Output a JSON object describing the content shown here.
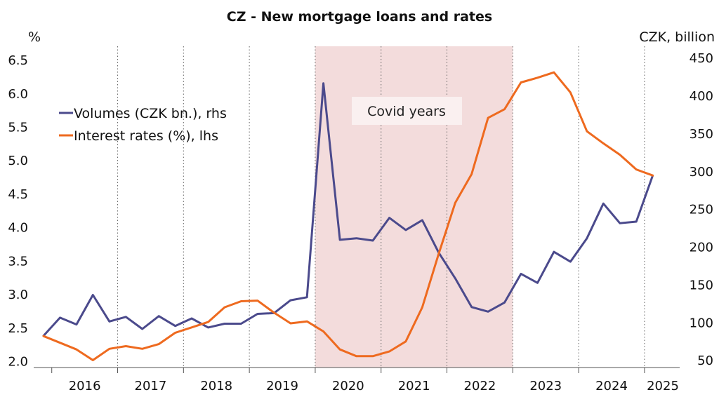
{
  "chart_data": {
    "type": "line",
    "title": "CZ - New mortgage loans and rates",
    "left_axis_unit": "%",
    "right_axis_unit": "CZK, billion",
    "left_ylim": [
      1.9,
      6.7
    ],
    "right_ylim": [
      40,
      465
    ],
    "left_ticks": [
      "2.0",
      "2.5",
      "3.0",
      "3.5",
      "4.0",
      "4.5",
      "5.0",
      "5.5",
      "6.0",
      "6.5"
    ],
    "right_ticks": [
      "50",
      "100",
      "150",
      "200",
      "250",
      "300",
      "350",
      "400",
      "450"
    ],
    "x_labels": [
      "2016",
      "2017",
      "2018",
      "2019",
      "2020",
      "2021",
      "2022",
      "2023",
      "2024",
      "2025"
    ],
    "x_quarters": [
      "2015 Q4",
      "2016 Q1",
      "2016 Q2",
      "2016 Q3",
      "2016 Q4",
      "2017 Q1",
      "2017 Q2",
      "2017 Q3",
      "2017 Q4",
      "2018 Q1",
      "2018 Q2",
      "2018 Q3",
      "2018 Q4",
      "2019 Q1",
      "2019 Q2",
      "2019 Q3",
      "2019 Q4",
      "2020 Q1",
      "2020 Q2",
      "2020 Q3",
      "2020 Q4",
      "2021 Q1",
      "2021 Q2",
      "2021 Q3",
      "2021 Q4",
      "2022 Q1",
      "2022 Q2",
      "2022 Q3",
      "2022 Q4",
      "2023 Q1",
      "2023 Q2",
      "2023 Q3",
      "2023 Q4",
      "2024 Q1",
      "2024 Q2",
      "2024 Q3",
      "2024 Q4",
      "2025 Q1"
    ],
    "series": [
      {
        "name": "Volumes (CZK bn.), rhs",
        "axis": "right",
        "color": "#4b4a8c",
        "values": [
          82,
          106,
          97,
          136,
          101,
          107,
          91,
          108,
          95,
          105,
          93,
          98,
          98,
          111,
          112,
          129,
          133,
          416,
          209,
          211,
          208,
          238,
          222,
          235,
          192,
          158,
          120,
          114,
          126,
          164,
          152,
          193,
          180,
          211,
          257,
          231,
          233,
          294
        ]
      },
      {
        "name": "Interest rates (%), lhs",
        "axis": "left",
        "color": "#ee6a1f",
        "values": [
          2.37,
          2.27,
          2.17,
          2.01,
          2.18,
          2.22,
          2.18,
          2.25,
          2.42,
          2.5,
          2.58,
          2.8,
          2.89,
          2.9,
          2.72,
          2.56,
          2.59,
          2.44,
          2.17,
          2.07,
          2.07,
          2.14,
          2.29,
          2.8,
          3.6,
          4.36,
          4.79,
          5.63,
          5.76,
          6.16,
          6.23,
          6.31,
          6.01,
          5.43,
          5.25,
          5.08,
          4.86,
          4.77
        ]
      }
    ],
    "shaded_region": {
      "label": "Covid years",
      "from": "2020 Q1",
      "to": "2023 Q1",
      "color": "#f3dcdc"
    },
    "grid": "vertical dotted at year boundaries",
    "legend_position": "top-left"
  }
}
